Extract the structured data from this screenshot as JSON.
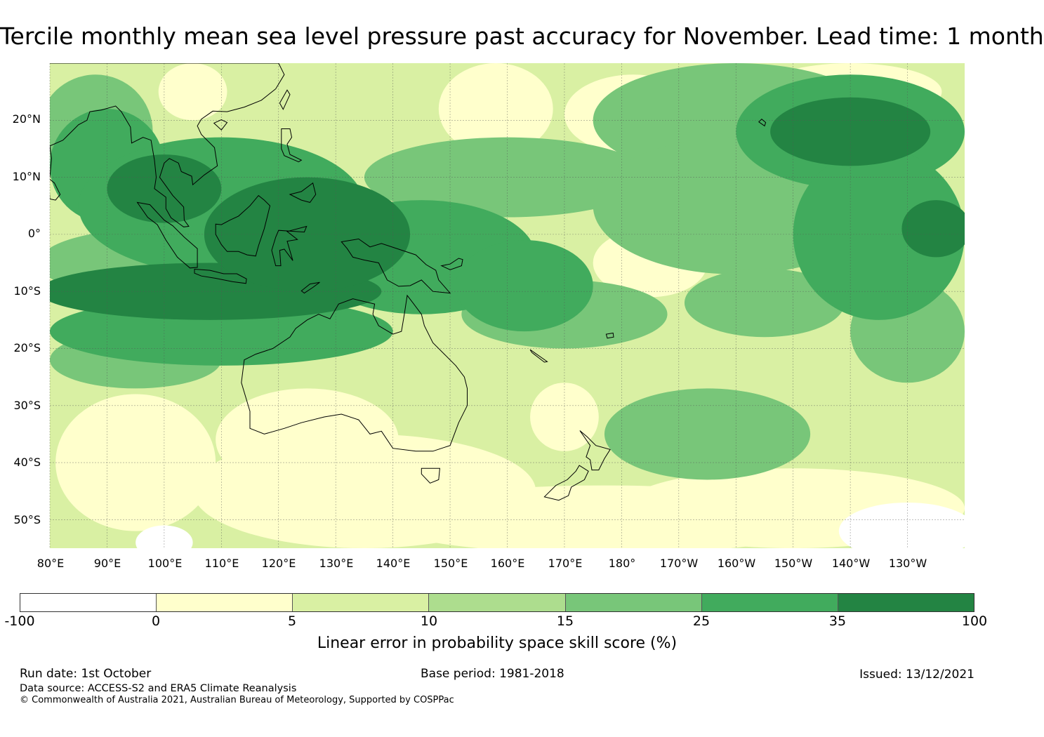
{
  "title": "Tercile monthly mean sea level pressure past accuracy for November. Lead time: 1 month",
  "map": {
    "lat_ticks": [
      "20°N",
      "10°N",
      "0°",
      "10°S",
      "20°S",
      "30°S",
      "40°S",
      "50°S"
    ],
    "lat_values": [
      20,
      10,
      0,
      -10,
      -20,
      -30,
      -40,
      -50
    ],
    "lon_ticks": [
      "80°E",
      "90°E",
      "100°E",
      "110°E",
      "120°E",
      "130°E",
      "140°E",
      "150°E",
      "160°E",
      "170°E",
      "180°",
      "170°W",
      "160°W",
      "150°W",
      "140°W",
      "130°W"
    ],
    "lon_values": [
      80,
      90,
      100,
      110,
      120,
      130,
      140,
      150,
      160,
      170,
      180,
      190,
      200,
      210,
      220,
      230
    ],
    "extent": {
      "lon_min": 80,
      "lon_max": 240,
      "lat_min": -55,
      "lat_max": 30
    }
  },
  "colorbar": {
    "colors": [
      "#ffffff",
      "#ffffcc",
      "#d9f0a3",
      "#addd8e",
      "#78c679",
      "#41ab5d",
      "#238443"
    ],
    "ticks": [
      "-100",
      "0",
      "5",
      "10",
      "15",
      "25",
      "35",
      "100"
    ],
    "label": "Linear error in probability space skill score (%)"
  },
  "footer": {
    "run_date": "Run date: 1st October",
    "base_period": "Base period: 1981-2018",
    "issued": "Issued: 13/12/2021",
    "data_source": "Data source: ACCESS-S2 and ERA5 Climate Reanalysis",
    "copyright": "© Commonwealth of Australia 2021, Australian Bureau of Meteorology, Supported by COSPPac"
  }
}
